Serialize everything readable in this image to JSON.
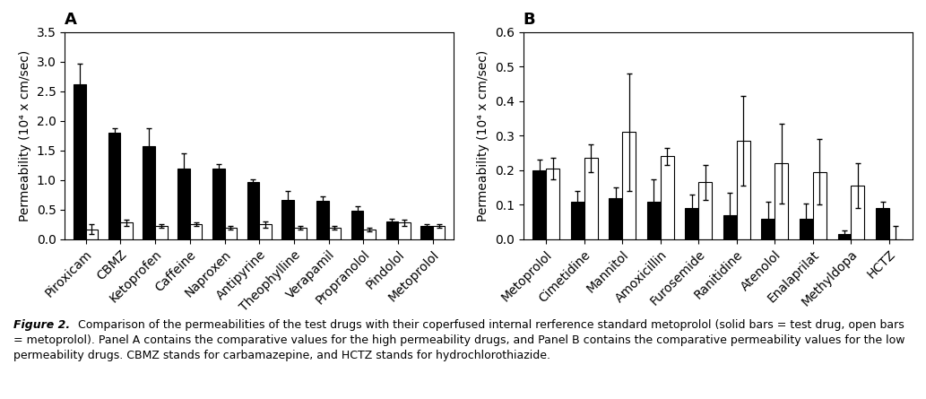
{
  "chart_data": [
    {
      "type": "bar",
      "title": "A",
      "categories": [
        "Piroxicam",
        "CBMZ",
        "Ketoprofen",
        "Caffeine",
        "Naproxen",
        "Antipyrine",
        "Theophylline",
        "Verapamil",
        "Propranolol",
        "Pindolol",
        "Metoprolol"
      ],
      "series": [
        {
          "color": "#000000",
          "values": [
            2.62,
            1.8,
            1.57,
            1.2,
            1.2,
            0.97,
            0.67,
            0.65,
            0.48,
            0.3,
            0.22
          ],
          "errors": [
            0.35,
            0.07,
            0.3,
            0.25,
            0.07,
            0.05,
            0.15,
            0.07,
            0.08,
            0.05,
            0.03
          ]
        },
        {
          "color": "#ffffff",
          "values": [
            0.17,
            0.28,
            0.22,
            0.25,
            0.2,
            0.25,
            0.2,
            0.2,
            0.17,
            0.28,
            0.22
          ],
          "errors": [
            0.08,
            0.05,
            0.03,
            0.03,
            0.03,
            0.05,
            0.03,
            0.03,
            0.03,
            0.05,
            0.03
          ]
        }
      ],
      "edge_color": "#000000",
      "ylabel": "Permeability (10⁴ x cm/sec)",
      "ylim": [
        0,
        3.5
      ],
      "yticks": [
        {
          "value": 0.0,
          "label": "0.0"
        },
        0.5,
        {
          "value": 1.0,
          "label": "1.0"
        },
        1.5,
        {
          "value": 2.0,
          "label": "2.0"
        },
        2.5,
        {
          "value": 3.0,
          "label": "3.0"
        },
        3.5
      ]
    },
    {
      "type": "bar",
      "title": "B",
      "categories": [
        "Metoprolol",
        "Cimetidine",
        "Mannitol",
        "Amoxicillin",
        "Furosemide",
        "Ranitidine",
        "Atenolol",
        "Enalaprilat",
        "Methyldopa",
        "HCTZ"
      ],
      "series": [
        {
          "color": "#000000",
          "values": [
            0.2,
            0.11,
            0.12,
            0.11,
            0.09,
            0.07,
            0.06,
            0.06,
            0.015,
            0.09
          ],
          "errors": [
            0.03,
            0.03,
            0.03,
            0.065,
            0.04,
            0.065,
            0.05,
            0.045,
            0.01,
            0.02
          ]
        },
        {
          "color": "#ffffff",
          "values": [
            0.205,
            0.235,
            0.31,
            0.24,
            0.165,
            0.285,
            0.22,
            0.195,
            0.155,
            0.0
          ],
          "errors": [
            0.03,
            0.04,
            0.17,
            0.025,
            0.05,
            0.13,
            0.115,
            0.095,
            0.065,
            0.04
          ]
        }
      ],
      "edge_color": "#000000",
      "ylabel": "Permeability (10⁴ x cm/sec)",
      "ylim": [
        0,
        0.6
      ],
      "yticks": [
        {
          "value": 0.0,
          "label": "0.0"
        },
        0.1,
        0.2,
        0.3,
        0.4,
        0.5,
        0.6
      ]
    }
  ],
  "caption": {
    "label": "Figure 2.",
    "text": "Comparison of the permeabilities of the test drugs with their coperfused internal rerference standard metoprolol (solid bars = test drug, open bars = metoprolol). Panel A contains the comparative values for the high permeability drugs, and Panel B contains the comparative permeability values for the low permeability drugs. CBMZ stands for carbamazepine, and HCTZ stands for hydrochlorothiazide."
  }
}
